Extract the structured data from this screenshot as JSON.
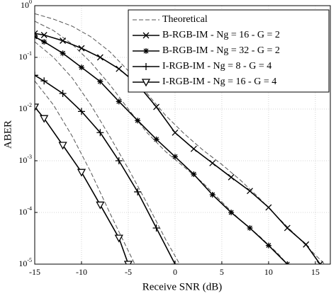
{
  "chart_data": {
    "type": "line",
    "log_y": true,
    "grid": true,
    "legend": "upper right",
    "xlabel": "Receive SNR (dB)",
    "ylabel": "ABER",
    "xlim": [
      -15,
      16.6
    ],
    "ylim": [
      1e-05,
      1
    ],
    "xticks": [
      -15,
      -10,
      -5,
      0,
      5,
      10,
      15
    ],
    "yticks": [
      {
        "value": 1,
        "label": "10^0"
      },
      {
        "value": 0.1,
        "label": "10^-1"
      },
      {
        "value": 0.01,
        "label": "10^-2"
      },
      {
        "value": 0.001,
        "label": "10^-3"
      },
      {
        "value": 0.0001,
        "label": "10^-4"
      },
      {
        "value": 1e-05,
        "label": "10^-5"
      }
    ],
    "theoretical": {
      "name": "Theoretical",
      "color": "#555555",
      "curves": [
        {
          "x": [
            -15,
            -13,
            -11,
            -9,
            -7,
            -5,
            -3,
            -1,
            1,
            3,
            5,
            7,
            9,
            11,
            13,
            15,
            16
          ],
          "values": [
            0.7,
            0.55,
            0.4,
            0.25,
            0.13,
            0.055,
            0.02,
            0.0075,
            0.0033,
            0.0016,
            0.00085,
            0.00042,
            0.00019,
            8e-05,
            3.5e-05,
            1.5e-05,
            1e-05
          ]
        },
        {
          "x": [
            -15,
            -13,
            -11,
            -9,
            -7,
            -5,
            -3,
            -1,
            1,
            3,
            5,
            7,
            9,
            11,
            12
          ],
          "values": [
            0.5,
            0.33,
            0.18,
            0.08,
            0.03,
            0.01,
            0.0035,
            0.0015,
            0.00075,
            0.00037,
            0.00016,
            7e-05,
            3.5e-05,
            1.6e-05,
            1e-05
          ]
        },
        {
          "x": [
            -15,
            -13,
            -11,
            -9,
            -7,
            -5,
            -3,
            -1,
            0.5
          ],
          "values": [
            0.2,
            0.1,
            0.04,
            0.012,
            0.003,
            0.0007,
            0.00015,
            3e-05,
            1e-05
          ]
        },
        {
          "x": [
            -15,
            -13,
            -11,
            -9,
            -7,
            -5,
            -4.3
          ],
          "values": [
            0.035,
            0.012,
            0.003,
            0.0006,
            0.0001,
            1.8e-05,
            1e-05
          ]
        }
      ]
    },
    "series": [
      {
        "name": "B-RGB-IM - Ng = 16 - G = 2",
        "color": "#000000",
        "marker": "x",
        "x": [
          -15,
          -14,
          -12,
          -10,
          -8,
          -6,
          -4,
          -2,
          0,
          2,
          4,
          6,
          8,
          10,
          12,
          14,
          15.5
        ],
        "values": [
          0.29,
          0.27,
          0.21,
          0.15,
          0.1,
          0.06,
          0.03,
          0.011,
          0.0035,
          0.0017,
          0.0009,
          0.00048,
          0.00026,
          0.000125,
          5e-05,
          2.4e-05,
          1e-05
        ]
      },
      {
        "name": "B-RGB-IM - Ng = 32 - G = 2",
        "color": "#000000",
        "marker": "asterisk",
        "x": [
          -15,
          -14,
          -12,
          -10,
          -8,
          -6,
          -4,
          -2,
          0,
          2,
          4,
          6,
          8,
          10,
          12
        ],
        "values": [
          0.25,
          0.2,
          0.12,
          0.064,
          0.034,
          0.014,
          0.006,
          0.0026,
          0.0012,
          0.00055,
          0.00022,
          0.0001,
          5e-05,
          2.3e-05,
          1e-05
        ]
      },
      {
        "name": "I-RGB-IM - Ng = 8 - G = 4",
        "color": "#000000",
        "marker": "plus",
        "x": [
          -15,
          -14,
          -12,
          -10,
          -8,
          -6,
          -4,
          -2,
          0
        ],
        "values": [
          0.045,
          0.035,
          0.02,
          0.009,
          0.0035,
          0.001,
          0.00025,
          5e-05,
          1e-05
        ]
      },
      {
        "name": "I-RGB-IM - Ng = 16 - G = 4",
        "color": "#000000",
        "marker": "triangle-down",
        "x": [
          -15,
          -14,
          -12,
          -10,
          -8,
          -6,
          -5
        ],
        "values": [
          0.011,
          0.0066,
          0.002,
          0.0006,
          0.00014,
          3.2e-05,
          1e-05
        ]
      }
    ]
  }
}
